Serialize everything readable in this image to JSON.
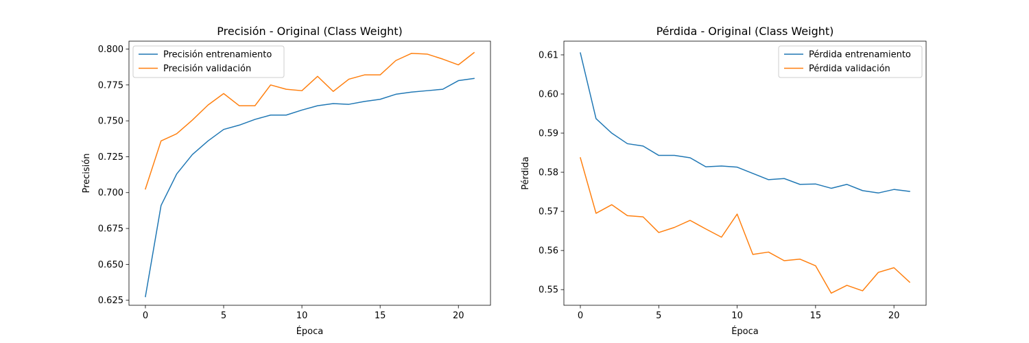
{
  "chart_data": [
    {
      "type": "line",
      "title": "Precisión - Original (Class Weight)",
      "xlabel": "Época",
      "ylabel": "Precisión",
      "xlim": [
        -1.05,
        22.05
      ],
      "ylim": [
        0.6215,
        0.8055
      ],
      "xticks": [
        0,
        5,
        10,
        15,
        20
      ],
      "yticks": [
        0.625,
        0.65,
        0.675,
        0.7,
        0.725,
        0.75,
        0.775,
        0.8
      ],
      "ytick_labels": [
        "0.625",
        "0.650",
        "0.675",
        "0.700",
        "0.725",
        "0.750",
        "0.775",
        "0.800"
      ],
      "legend_position": "upper-left",
      "grid": false,
      "x": [
        0,
        1,
        2,
        3,
        4,
        5,
        6,
        7,
        8,
        9,
        10,
        11,
        12,
        13,
        14,
        15,
        16,
        17,
        18,
        19,
        20,
        21
      ],
      "series": [
        {
          "name": "Precisión entrenamiento",
          "color": "#1f77b4",
          "values": [
            0.6275,
            0.691,
            0.713,
            0.7265,
            0.736,
            0.744,
            0.747,
            0.751,
            0.754,
            0.754,
            0.7575,
            0.7605,
            0.762,
            0.7615,
            0.7635,
            0.765,
            0.7685,
            0.77,
            0.771,
            0.772,
            0.778,
            0.7795
          ]
        },
        {
          "name": "Precisión validación",
          "color": "#ff7f0e",
          "values": [
            0.7025,
            0.736,
            0.741,
            0.7505,
            0.761,
            0.769,
            0.7605,
            0.7605,
            0.775,
            0.772,
            0.771,
            0.781,
            0.7705,
            0.779,
            0.782,
            0.782,
            0.792,
            0.797,
            0.7965,
            0.793,
            0.789,
            0.7975
          ]
        }
      ]
    },
    {
      "type": "line",
      "title": "Pérdida - Original (Class Weight)",
      "xlabel": "Época",
      "ylabel": "Pérdida",
      "xlim": [
        -1.05,
        22.05
      ],
      "ylim": [
        0.546,
        0.6135
      ],
      "xticks": [
        0,
        5,
        10,
        15,
        20
      ],
      "yticks": [
        0.55,
        0.56,
        0.57,
        0.58,
        0.59,
        0.6,
        0.61
      ],
      "ytick_labels": [
        "0.55",
        "0.56",
        "0.57",
        "0.58",
        "0.59",
        "0.60",
        "0.61"
      ],
      "legend_position": "upper-right",
      "grid": false,
      "x": [
        0,
        1,
        2,
        3,
        4,
        5,
        6,
        7,
        8,
        9,
        10,
        11,
        12,
        13,
        14,
        15,
        16,
        17,
        18,
        19,
        20,
        21
      ],
      "series": [
        {
          "name": "Pérdida entrenamiento",
          "color": "#1f77b4",
          "values": [
            0.6105,
            0.5937,
            0.59,
            0.5873,
            0.5867,
            0.5843,
            0.5843,
            0.5837,
            0.5814,
            0.5816,
            0.5813,
            0.5797,
            0.5781,
            0.5784,
            0.5769,
            0.577,
            0.5759,
            0.5769,
            0.5753,
            0.5747,
            0.5756,
            0.5751
          ]
        },
        {
          "name": "Pérdida validación",
          "color": "#ff7f0e",
          "values": [
            0.5837,
            0.5695,
            0.5717,
            0.5689,
            0.5686,
            0.5646,
            0.5659,
            0.5677,
            0.5655,
            0.5634,
            0.5693,
            0.559,
            0.5596,
            0.5574,
            0.5578,
            0.5561,
            0.5491,
            0.5511,
            0.5497,
            0.5544,
            0.5556,
            0.5519
          ]
        }
      ]
    }
  ]
}
